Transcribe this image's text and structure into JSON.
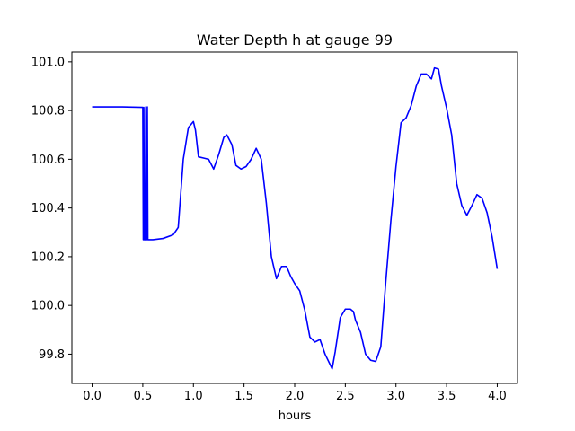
{
  "chart_data": {
    "type": "line",
    "title": "Water Depth h at gauge 99",
    "xlabel": "hours",
    "ylabel": "",
    "xlim": [
      -0.2,
      4.2
    ],
    "ylim": [
      99.68,
      101.04
    ],
    "xticks": [
      0.0,
      0.5,
      1.0,
      1.5,
      2.0,
      2.5,
      3.0,
      3.5,
      4.0
    ],
    "xtick_labels": [
      "0.0",
      "0.5",
      "1.0",
      "1.5",
      "2.0",
      "2.5",
      "3.0",
      "3.5",
      "4.0"
    ],
    "yticks": [
      99.8,
      100.0,
      100.2,
      100.4,
      100.6,
      100.8,
      101.0
    ],
    "ytick_labels": [
      "99.8",
      "100.0",
      "100.2",
      "100.4",
      "100.6",
      "100.8",
      "101.0"
    ],
    "grid": false,
    "series": [
      {
        "color": "#0000ff",
        "x": [
          0.0,
          0.1,
          0.2,
          0.3,
          0.4,
          0.5,
          0.505,
          0.51,
          0.515,
          0.52,
          0.525,
          0.53,
          0.535,
          0.54,
          0.545,
          0.55,
          0.6,
          0.7,
          0.8,
          0.85,
          0.9,
          0.95,
          1.0,
          1.02,
          1.05,
          1.1,
          1.15,
          1.2,
          1.25,
          1.3,
          1.33,
          1.38,
          1.42,
          1.47,
          1.52,
          1.57,
          1.62,
          1.67,
          1.72,
          1.77,
          1.82,
          1.87,
          1.92,
          1.96,
          2.0,
          2.05,
          2.1,
          2.15,
          2.2,
          2.25,
          2.3,
          2.37,
          2.4,
          2.45,
          2.5,
          2.55,
          2.58,
          2.6,
          2.65,
          2.7,
          2.75,
          2.8,
          2.85,
          2.9,
          2.95,
          3.0,
          3.05,
          3.1,
          3.15,
          3.2,
          3.25,
          3.3,
          3.35,
          3.38,
          3.42,
          3.45,
          3.5,
          3.55,
          3.6,
          3.65,
          3.7,
          3.75,
          3.8,
          3.85,
          3.9,
          3.95,
          4.0
        ],
        "y": [
          100.815,
          100.815,
          100.815,
          100.815,
          100.814,
          100.813,
          100.27,
          100.813,
          100.27,
          100.27,
          100.27,
          100.815,
          100.27,
          100.27,
          100.815,
          100.27,
          100.27,
          100.275,
          100.29,
          100.32,
          100.6,
          100.73,
          100.755,
          100.72,
          100.61,
          100.605,
          100.6,
          100.56,
          100.62,
          100.69,
          100.7,
          100.66,
          100.575,
          100.56,
          100.57,
          100.6,
          100.645,
          100.6,
          100.42,
          100.2,
          100.11,
          100.16,
          100.16,
          100.12,
          100.09,
          100.06,
          99.98,
          99.87,
          99.85,
          99.86,
          99.8,
          99.74,
          99.81,
          99.95,
          99.985,
          99.985,
          99.975,
          99.94,
          99.89,
          99.8,
          99.775,
          99.77,
          99.83,
          100.1,
          100.35,
          100.57,
          100.75,
          100.77,
          100.82,
          100.9,
          100.95,
          100.95,
          100.93,
          100.975,
          100.97,
          100.9,
          100.81,
          100.7,
          100.5,
          100.41,
          100.37,
          100.41,
          100.455,
          100.44,
          100.38,
          100.28,
          100.15
        ]
      }
    ]
  }
}
